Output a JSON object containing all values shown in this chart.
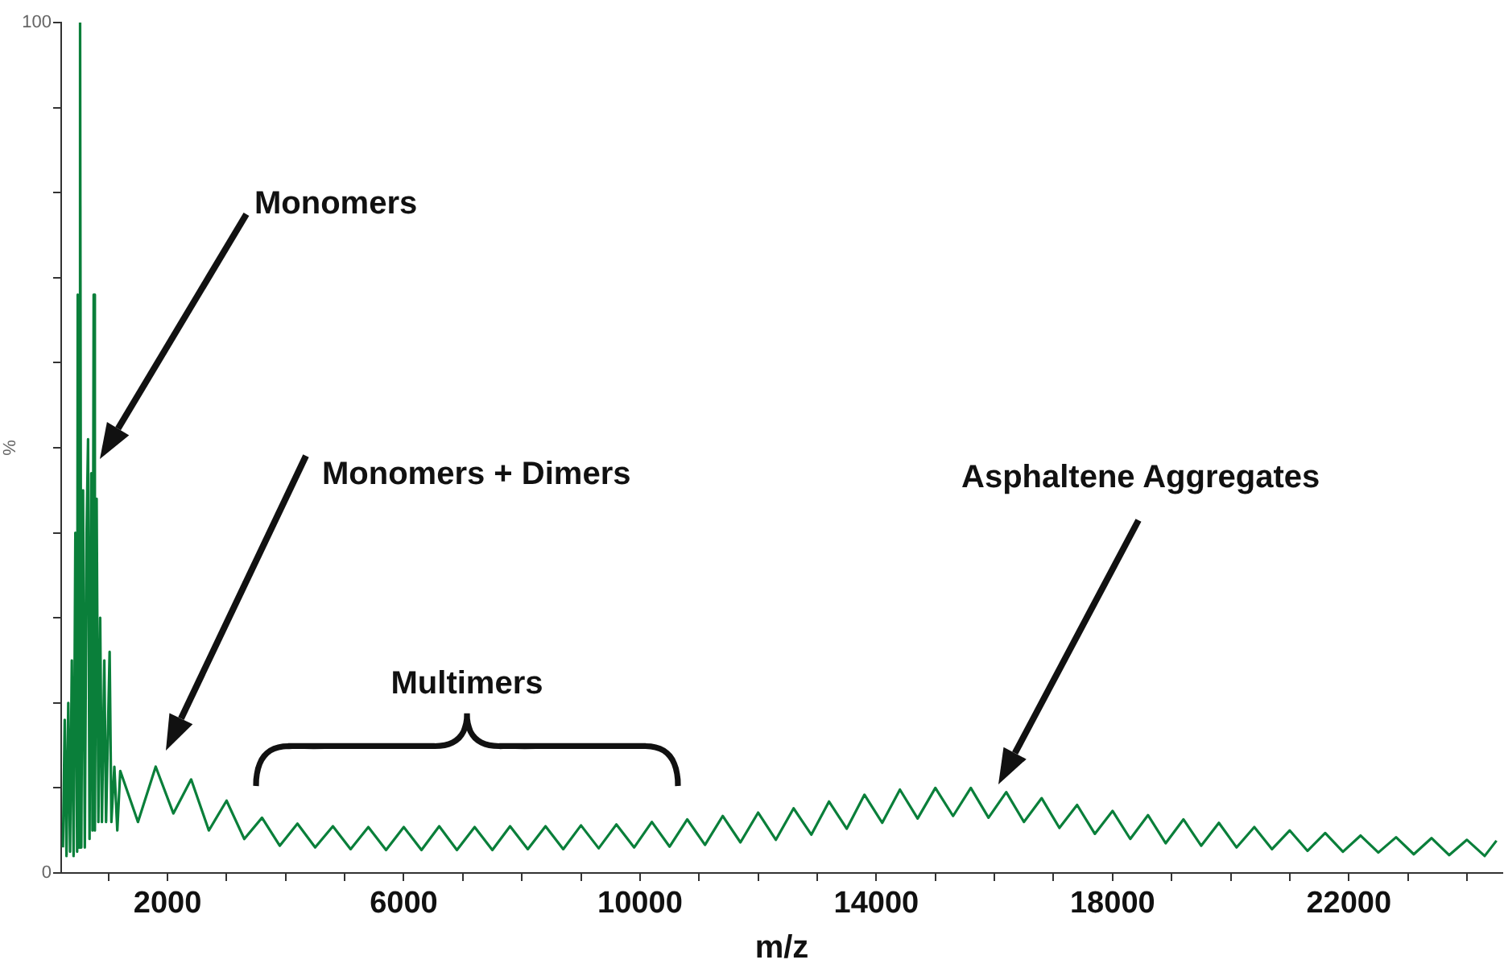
{
  "chart_data": {
    "type": "line",
    "xlabel": "m/z",
    "ylabel": "%",
    "grid": false,
    "legend": false,
    "marker": "none",
    "line_style": "solid",
    "xlim": [
      200,
      24600
    ],
    "ylim": [
      0,
      100
    ],
    "xticks": [
      {
        "value": 1000,
        "label": null
      },
      2000,
      {
        "value": 3000,
        "label": null
      },
      {
        "value": 4000,
        "label": null
      },
      {
        "value": 5000,
        "label": null
      },
      6000,
      {
        "value": 7000,
        "label": null
      },
      {
        "value": 8000,
        "label": null
      },
      {
        "value": 9000,
        "label": null
      },
      10000,
      {
        "value": 11000,
        "label": null
      },
      {
        "value": 12000,
        "label": null
      },
      {
        "value": 13000,
        "label": null
      },
      14000,
      {
        "value": 15000,
        "label": null
      },
      {
        "value": 16000,
        "label": null
      },
      {
        "value": 17000,
        "label": null
      },
      18000,
      {
        "value": 19000,
        "label": null
      },
      {
        "value": 20000,
        "label": null
      },
      {
        "value": 21000,
        "label": null
      },
      22000,
      {
        "value": 23000,
        "label": null
      },
      {
        "value": 24000,
        "label": null
      }
    ],
    "yticks": [
      0,
      {
        "value": 10,
        "label": null
      },
      {
        "value": 20,
        "label": null
      },
      {
        "value": 30,
        "label": null
      },
      {
        "value": 40,
        "label": null
      },
      {
        "value": 50,
        "label": null
      },
      {
        "value": 60,
        "label": null
      },
      {
        "value": 70,
        "label": null
      },
      {
        "value": 80,
        "label": null
      },
      {
        "value": 90,
        "label": null
      },
      100
    ],
    "x": [
      230,
      260,
      290,
      320,
      350,
      380,
      410,
      440,
      470,
      480,
      500,
      520,
      540,
      570,
      600,
      630,
      655,
      680,
      710,
      730,
      750,
      770,
      800,
      830,
      860,
      890,
      930,
      960,
      1020,
      1050,
      1100,
      1150,
      1200,
      1500,
      1800,
      2100,
      2400,
      2700,
      3000,
      3300,
      3600,
      3900,
      4200,
      4500,
      4800,
      5100,
      5400,
      5700,
      6000,
      6300,
      6600,
      6900,
      7200,
      7500,
      7800,
      8100,
      8400,
      8700,
      9000,
      9300,
      9600,
      9900,
      10200,
      10500,
      10800,
      11100,
      11400,
      11700,
      12000,
      12300,
      12600,
      12900,
      13200,
      13500,
      13800,
      14100,
      14400,
      14700,
      15000,
      15300,
      15600,
      15900,
      16200,
      16500,
      16800,
      17100,
      17400,
      17700,
      18000,
      18300,
      18600,
      18900,
      19200,
      19500,
      19800,
      20100,
      20400,
      20700,
      21000,
      21300,
      21600,
      21900,
      22200,
      22500,
      22800,
      23100,
      23400,
      23700,
      24000,
      24300,
      24500
    ],
    "series": [
      {
        "color": "#0a7f3a",
        "values": [
          3,
          18,
          2,
          20,
          2.5,
          25,
          2,
          40,
          2.5,
          68,
          3,
          100,
          3,
          45,
          3,
          40,
          51,
          4,
          47,
          5,
          68,
          5,
          44,
          6,
          30,
          6,
          25,
          6,
          26,
          6,
          12.5,
          5,
          12,
          6,
          12.5,
          7,
          11,
          5,
          8.5,
          4,
          6.5,
          3.2,
          5.8,
          3,
          5.5,
          2.8,
          5.4,
          2.7,
          5.4,
          2.7,
          5.5,
          2.7,
          5.4,
          2.7,
          5.5,
          2.8,
          5.5,
          2.8,
          5.6,
          2.9,
          5.7,
          3,
          6,
          3.1,
          6.3,
          3.3,
          6.7,
          3.6,
          7.1,
          3.9,
          7.6,
          4.5,
          8.4,
          5.2,
          9.2,
          5.9,
          9.8,
          6.4,
          10,
          6.7,
          10,
          6.5,
          9.5,
          6,
          8.8,
          5.3,
          8,
          4.6,
          7.3,
          4,
          6.8,
          3.5,
          6.3,
          3.2,
          5.9,
          3,
          5.4,
          2.8,
          5,
          2.6,
          4.7,
          2.5,
          4.4,
          2.4,
          4.2,
          2.2,
          4.1,
          2.1,
          3.9,
          2,
          3.8
        ]
      }
    ],
    "annotations": [
      "Monomers",
      "Monomers + Dimers",
      "Multimers",
      "Asphaltene Aggregates"
    ]
  }
}
